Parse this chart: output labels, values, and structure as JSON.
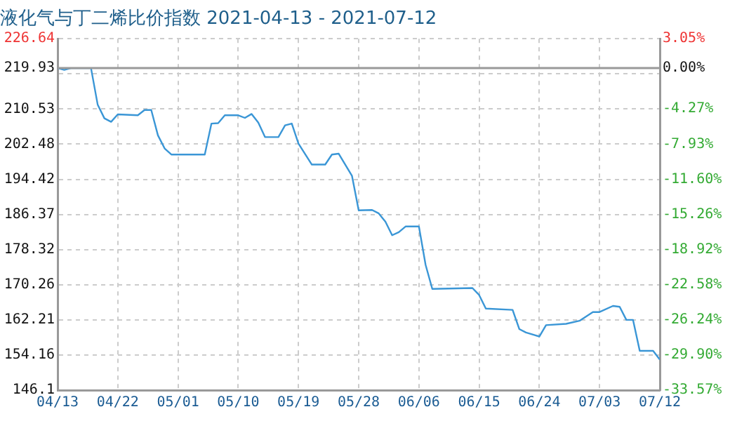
{
  "chart_data": {
    "type": "line",
    "title": "液化气与丁二烯比价指数 2021-04-13 - 2021-07-12",
    "series": [
      {
        "color": "#3a96d6",
        "x": [
          "2021-04-13",
          "2021-04-14",
          "2021-04-15",
          "2021-04-18",
          "2021-04-19",
          "2021-04-20",
          "2021-04-21",
          "2021-04-22",
          "2021-04-25",
          "2021-04-26",
          "2021-04-27",
          "2021-04-28",
          "2021-04-29",
          "2021-04-30",
          "2021-05-05",
          "2021-05-06",
          "2021-05-07",
          "2021-05-08",
          "2021-05-10",
          "2021-05-11",
          "2021-05-12",
          "2021-05-13",
          "2021-05-14",
          "2021-05-16",
          "2021-05-17",
          "2021-05-18",
          "2021-05-19",
          "2021-05-21",
          "2021-05-23",
          "2021-05-24",
          "2021-05-25",
          "2021-05-27",
          "2021-05-28",
          "2021-05-30",
          "2021-05-31",
          "2021-06-01",
          "2021-06-02",
          "2021-06-03",
          "2021-06-04",
          "2021-06-06",
          "2021-06-07",
          "2021-06-08",
          "2021-06-14",
          "2021-06-15",
          "2021-06-16",
          "2021-06-20",
          "2021-06-21",
          "2021-06-22",
          "2021-06-24",
          "2021-06-25",
          "2021-06-28",
          "2021-06-30",
          "2021-07-02",
          "2021-07-03",
          "2021-07-05",
          "2021-07-06",
          "2021-07-07",
          "2021-07-08",
          "2021-07-09",
          "2021-07-11",
          "2021-07-12"
        ],
        "values": [
          219.9,
          219.5,
          219.9,
          219.9,
          211.5,
          208.4,
          207.6,
          209.3,
          209.1,
          210.3,
          210.3,
          204.5,
          201.5,
          200.1,
          200.1,
          207.2,
          207.3,
          209.1,
          209.1,
          208.5,
          209.4,
          207.4,
          204.1,
          204.1,
          206.8,
          207.2,
          202.6,
          197.8,
          197.8,
          200.1,
          200.3,
          195.2,
          187.3,
          187.4,
          186.6,
          184.7,
          181.6,
          182.3,
          183.6,
          183.6,
          174.8,
          169.3,
          169.5,
          167.9,
          164.8,
          164.5,
          160.1,
          159.3,
          158.4,
          161.0,
          161.3,
          162.0,
          164.0,
          164.0,
          165.4,
          165.2,
          162.2,
          162.2,
          155.1,
          155.1,
          153.1
        ]
      }
    ],
    "xlim": [
      "2021-04-13",
      "2021-07-12"
    ],
    "xticks": [
      {
        "value": "2021-04-13",
        "label": "04/13"
      },
      {
        "value": "2021-04-22",
        "label": "04/22"
      },
      {
        "value": "2021-05-01",
        "label": "05/01"
      },
      {
        "value": "2021-05-10",
        "label": "05/10"
      },
      {
        "value": "2021-05-19",
        "label": "05/19"
      },
      {
        "value": "2021-05-28",
        "label": "05/28"
      },
      {
        "value": "2021-06-06",
        "label": "06/06"
      },
      {
        "value": "2021-06-15",
        "label": "06/15"
      },
      {
        "value": "2021-06-24",
        "label": "06/24"
      },
      {
        "value": "2021-07-03",
        "label": "07/03"
      },
      {
        "value": "2021-07-12",
        "label": "07/12"
      }
    ],
    "ylim": [
      146.1,
      226.64
    ],
    "yticks": [
      146.1,
      154.16,
      162.21,
      170.26,
      178.32,
      186.37,
      194.42,
      202.48,
      210.53,
      {
        "value": 218.59,
        "label": null
      },
      219.93,
      226.64
    ],
    "y2lim": [
      -33.57,
      3.05
    ],
    "y2ticks": [
      {
        "value": -33.57,
        "label": "-33.57%"
      },
      {
        "value": -29.9,
        "label": "-29.90%"
      },
      {
        "value": -26.24,
        "label": "-26.24%"
      },
      {
        "value": -22.58,
        "label": "-22.58%"
      },
      {
        "value": -18.92,
        "label": "-18.92%"
      },
      {
        "value": -15.26,
        "label": "-15.26%"
      },
      {
        "value": -11.6,
        "label": "-11.60%"
      },
      {
        "value": -7.93,
        "label": "-7.93%"
      },
      {
        "value": -4.27,
        "label": "-4.27%"
      },
      {
        "value": 0,
        "label": "0.00%"
      },
      {
        "value": 3.05,
        "label": "3.05%"
      }
    ],
    "ref_lines": [
      {
        "axis": "y",
        "value": 219.93,
        "color": "#999999"
      }
    ],
    "grid": true,
    "legend": false,
    "marker": "none",
    "line_style": "solid"
  }
}
